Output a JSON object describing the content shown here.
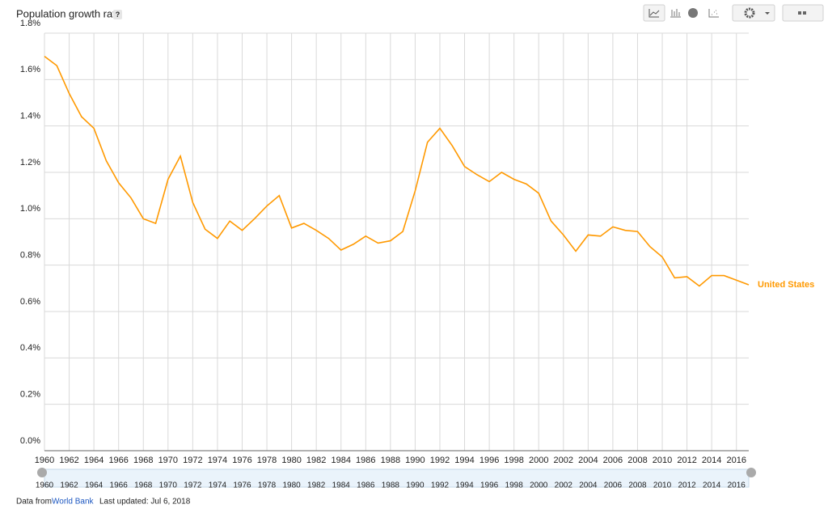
{
  "chart_data": {
    "type": "line",
    "title": "Population growth rate",
    "help_icon": "?",
    "x": [
      1960,
      1961,
      1962,
      1963,
      1964,
      1965,
      1966,
      1967,
      1968,
      1969,
      1970,
      1971,
      1972,
      1973,
      1974,
      1975,
      1976,
      1977,
      1978,
      1979,
      1980,
      1981,
      1982,
      1983,
      1984,
      1985,
      1986,
      1987,
      1988,
      1989,
      1990,
      1991,
      1992,
      1993,
      1994,
      1995,
      1996,
      1997,
      1998,
      1999,
      2000,
      2001,
      2002,
      2003,
      2004,
      2005,
      2006,
      2007,
      2008,
      2009,
      2010,
      2011,
      2012,
      2013,
      2014,
      2015,
      2016,
      2017
    ],
    "series": [
      {
        "name": "United States",
        "color": "#ff9900",
        "values": [
          1.7,
          1.66,
          1.54,
          1.44,
          1.39,
          1.25,
          1.155,
          1.09,
          1.0,
          0.98,
          1.17,
          1.27,
          1.07,
          0.955,
          0.915,
          0.99,
          0.95,
          1.0,
          1.055,
          1.1,
          0.96,
          0.98,
          0.95,
          0.915,
          0.865,
          0.89,
          0.925,
          0.895,
          0.905,
          0.945,
          1.12,
          1.33,
          1.39,
          1.315,
          1.225,
          1.19,
          1.16,
          1.2,
          1.17,
          1.15,
          1.11,
          0.99,
          0.93,
          0.86,
          0.93,
          0.925,
          0.965,
          0.95,
          0.945,
          0.88,
          0.835,
          0.745,
          0.75,
          0.71,
          0.755,
          0.755,
          0.735,
          0.715
        ]
      }
    ],
    "xlim": [
      1960,
      2017
    ],
    "xticks": [
      1960,
      1962,
      1964,
      1966,
      1968,
      1970,
      1972,
      1974,
      1976,
      1978,
      1980,
      1982,
      1984,
      1986,
      1988,
      1990,
      1992,
      1994,
      1996,
      1998,
      2000,
      2002,
      2004,
      2006,
      2008,
      2010,
      2012,
      2014,
      2016
    ],
    "ylim": [
      0,
      1.8
    ],
    "yticks": [
      {
        "value": 0,
        "label": "0.0%"
      },
      {
        "value": 0.2,
        "label": "0.2%"
      },
      {
        "value": 0.4,
        "label": "0.4%"
      },
      {
        "value": 0.6,
        "label": "0.6%"
      },
      {
        "value": 0.8,
        "label": "0.8%"
      },
      {
        "value": 1.0,
        "label": "1.0%"
      },
      {
        "value": 1.2,
        "label": "1.2%"
      },
      {
        "value": 1.4,
        "label": "1.4%"
      },
      {
        "value": 1.6,
        "label": "1.6%"
      },
      {
        "value": 1.8,
        "label": "1.8%"
      }
    ],
    "grid": true
  },
  "footer": {
    "source_prefix": "Data from",
    "source_link": "World Bank",
    "updated": "Last updated: Jul 6, 2018"
  }
}
